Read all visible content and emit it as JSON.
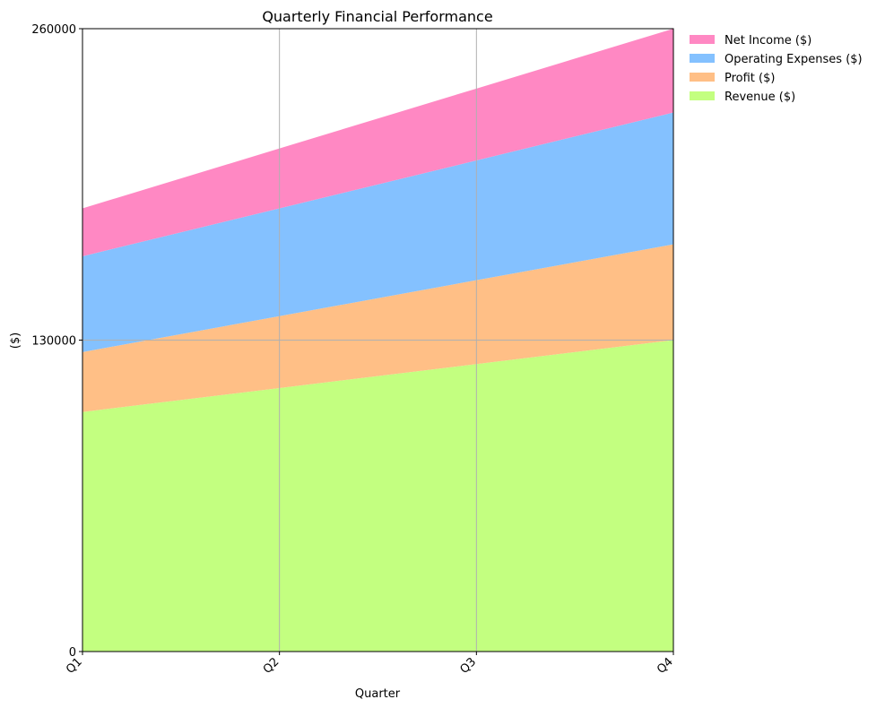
{
  "chart_data": {
    "type": "area",
    "stacked": true,
    "title": "Quarterly Financial Performance",
    "xlabel": "Quarter",
    "ylabel": "($)",
    "categories": [
      "Q1",
      "Q2",
      "Q3",
      "Q4"
    ],
    "ylim": [
      0,
      260000
    ],
    "yticks": [
      0,
      130000,
      260000
    ],
    "ytick_labels": [
      "0",
      "130000",
      "260000"
    ],
    "grid": true,
    "legend_position": "outside-top-right",
    "series": [
      {
        "name": "Revenue ($)",
        "color": "#c3ff80",
        "values": [
          100000,
          110000,
          120000,
          130000
        ]
      },
      {
        "name": "Profit ($)",
        "color": "#ffbf86",
        "values": [
          25000,
          30000,
          35000,
          40000
        ]
      },
      {
        "name": "Operating Expenses ($)",
        "color": "#84c1ff",
        "values": [
          40000,
          45000,
          50000,
          55000
        ]
      },
      {
        "name": "Net Income ($)",
        "color": "#ff88c3",
        "values": [
          20000,
          25000,
          30000,
          35000
        ]
      }
    ],
    "legend_order": [
      "Net Income ($)",
      "Operating Expenses ($)",
      "Profit ($)",
      "Revenue ($)"
    ]
  }
}
